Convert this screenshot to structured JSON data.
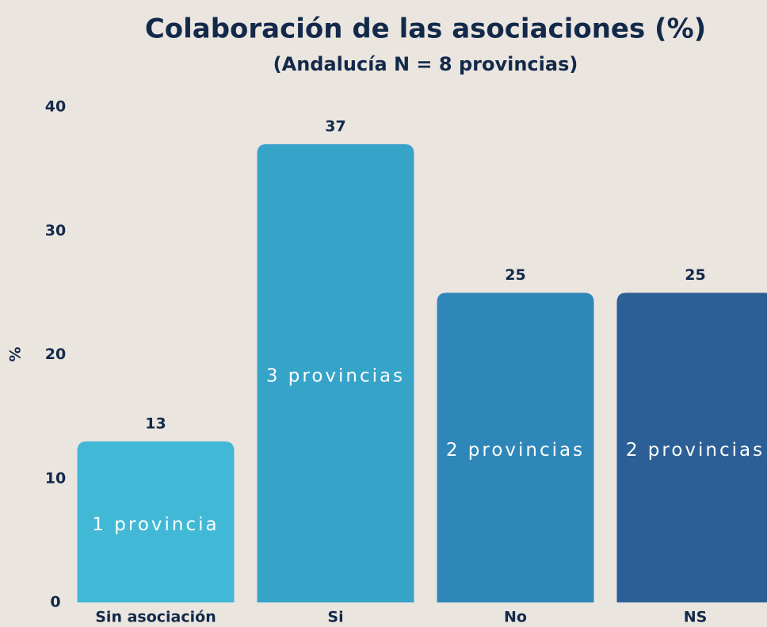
{
  "chart_data": {
    "type": "bar",
    "title": "Colaboración de las asociaciones (%)",
    "subtitle": "(Andalucía N = 8 provincias)",
    "y_label": "%",
    "categories": [
      "Sin asociación",
      "Si",
      "No",
      "NS"
    ],
    "values": [
      13,
      37,
      25,
      25
    ],
    "colors": [
      "#41b8d5",
      "#36a3c9",
      "#2e87b8",
      "#2d5f97"
    ],
    "bar_labels": [
      "1 provincia",
      "3 provincias",
      "2 provincias",
      "2 provincias"
    ],
    "ylim": [
      0,
      40
    ],
    "yticks": [
      0,
      10,
      20,
      30,
      40
    ],
    "grid": false
  }
}
